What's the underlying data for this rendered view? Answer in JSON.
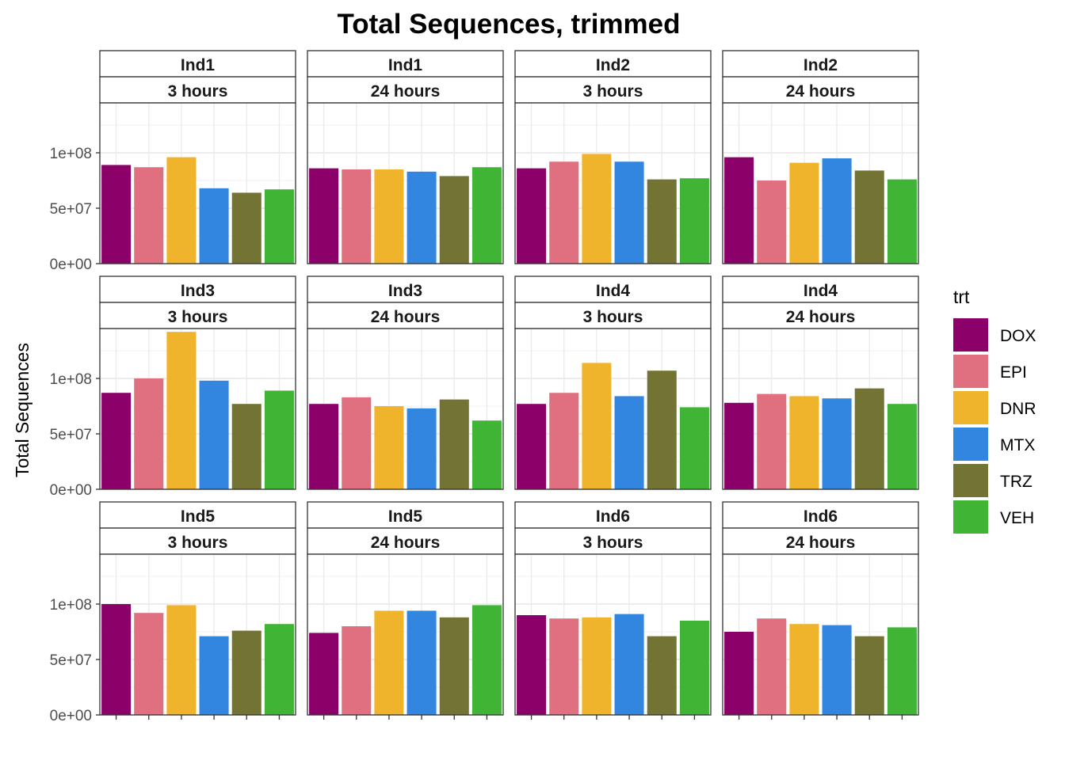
{
  "chart_data": {
    "type": "bar",
    "title": "Total Sequences, trimmed",
    "xlabel": "",
    "ylabel": "Total Sequences",
    "ylim": [
      0,
      145000000
    ],
    "y_ticks": [
      0,
      50000000,
      100000000
    ],
    "y_tick_labels": [
      "0e+00",
      "5e+07",
      "1e+08"
    ],
    "grid": true,
    "legend": {
      "title": "trt",
      "placement": "right",
      "entries": [
        "DOX",
        "EPI",
        "DNR",
        "MTX",
        "TRZ",
        "VEH"
      ]
    },
    "colors": {
      "DOX": "#8B0069",
      "EPI": "#E0707F",
      "DNR": "#F0B42C",
      "MTX": "#3386E0",
      "TRZ": "#737333",
      "VEH": "#40B435"
    },
    "categories": [
      "DOX",
      "EPI",
      "DNR",
      "MTX",
      "TRZ",
      "VEH"
    ],
    "panels": [
      {
        "ind": "Ind1",
        "time": "3 hours",
        "values": [
          89000000,
          87000000,
          96000000,
          68000000,
          64000000,
          67000000
        ]
      },
      {
        "ind": "Ind1",
        "time": "24 hours",
        "values": [
          86000000,
          85000000,
          85000000,
          83000000,
          79000000,
          87000000
        ]
      },
      {
        "ind": "Ind2",
        "time": "3 hours",
        "values": [
          86000000,
          92000000,
          99000000,
          92000000,
          76000000,
          77000000
        ]
      },
      {
        "ind": "Ind2",
        "time": "24 hours",
        "values": [
          96000000,
          75000000,
          91000000,
          95000000,
          84000000,
          76000000
        ]
      },
      {
        "ind": "Ind3",
        "time": "3 hours",
        "values": [
          87000000,
          100000000,
          142000000,
          98000000,
          77000000,
          89000000
        ]
      },
      {
        "ind": "Ind3",
        "time": "24 hours",
        "values": [
          77000000,
          83000000,
          75000000,
          73000000,
          81000000,
          62000000
        ]
      },
      {
        "ind": "Ind4",
        "time": "3 hours",
        "values": [
          77000000,
          87000000,
          114000000,
          84000000,
          107000000,
          74000000
        ]
      },
      {
        "ind": "Ind4",
        "time": "24 hours",
        "values": [
          78000000,
          86000000,
          84000000,
          82000000,
          91000000,
          77000000
        ]
      },
      {
        "ind": "Ind5",
        "time": "3 hours",
        "values": [
          100000000,
          92000000,
          99000000,
          71000000,
          76000000,
          82000000
        ]
      },
      {
        "ind": "Ind5",
        "time": "24 hours",
        "values": [
          74000000,
          80000000,
          94000000,
          94000000,
          88000000,
          99000000
        ]
      },
      {
        "ind": "Ind6",
        "time": "3 hours",
        "values": [
          90000000,
          87000000,
          88000000,
          91000000,
          71000000,
          85000000
        ]
      },
      {
        "ind": "Ind6",
        "time": "24 hours",
        "values": [
          75000000,
          87000000,
          82000000,
          81000000,
          71000000,
          79000000
        ]
      }
    ]
  }
}
